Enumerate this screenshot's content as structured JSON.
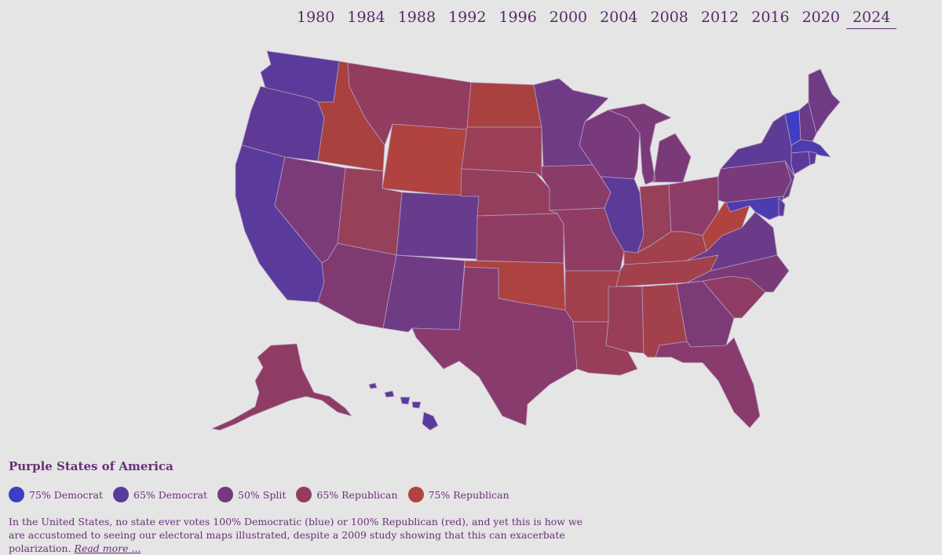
{
  "years": [
    "1980",
    "1984",
    "1988",
    "1992",
    "1996",
    "2000",
    "2004",
    "2008",
    "2012",
    "2016",
    "2020",
    "2024"
  ],
  "active_year": "2024",
  "title": "Purple States of America",
  "legend": [
    {
      "label": "75% Democrat",
      "color": "#3e3dc4"
    },
    {
      "label": "65% Democrat",
      "color": "#5a3b9c"
    },
    {
      "label": "50% Split",
      "color": "#753a7d"
    },
    {
      "label": "65% Republican",
      "color": "#923c5f"
    },
    {
      "label": "75% Republican",
      "color": "#b0433f"
    }
  ],
  "description": "In the United States, no state ever votes 100% Democratic (blue) or 100% Republican (red), and yet this is how we are accustomed to seeing our electoral maps illustrated, despite a 2009 study showing that this can exacerbate polarization.",
  "read_more": "Read more ...",
  "colors": {
    "background": "#e5e5e5",
    "text": "#6b2f78",
    "border": "#b79ac0"
  },
  "states": [
    {
      "id": "WA",
      "name": "Washington",
      "color": "#5a3b9c"
    },
    {
      "id": "OR",
      "name": "Oregon",
      "color": "#5e3a96"
    },
    {
      "id": "CA",
      "name": "California",
      "color": "#5a3b9c"
    },
    {
      "id": "ID",
      "name": "Idaho",
      "color": "#a8413f"
    },
    {
      "id": "NV",
      "name": "Nevada",
      "color": "#7b3a78"
    },
    {
      "id": "MT",
      "name": "Montana",
      "color": "#923c5f"
    },
    {
      "id": "WY",
      "name": "Wyoming",
      "color": "#b0433f"
    },
    {
      "id": "UT",
      "name": "Utah",
      "color": "#96405a"
    },
    {
      "id": "AZ",
      "name": "Arizona",
      "color": "#7f3a72"
    },
    {
      "id": "CO",
      "name": "Colorado",
      "color": "#683c8c"
    },
    {
      "id": "NM",
      "name": "New Mexico",
      "color": "#6e3b84"
    },
    {
      "id": "ND",
      "name": "North Dakota",
      "color": "#a8413f"
    },
    {
      "id": "SD",
      "name": "South Dakota",
      "color": "#9a3f55"
    },
    {
      "id": "NE",
      "name": "Nebraska",
      "color": "#953d5c"
    },
    {
      "id": "KS",
      "name": "Kansas",
      "color": "#913c62"
    },
    {
      "id": "OK",
      "name": "Oklahoma",
      "color": "#ad4340"
    },
    {
      "id": "TX",
      "name": "Texas",
      "color": "#883b6c"
    },
    {
      "id": "MN",
      "name": "Minnesota",
      "color": "#6e3b84"
    },
    {
      "id": "IA",
      "name": "Iowa",
      "color": "#8a3c68"
    },
    {
      "id": "MO",
      "name": "Missouri",
      "color": "#903c63"
    },
    {
      "id": "AR",
      "name": "Arkansas",
      "color": "#a2404c"
    },
    {
      "id": "LA",
      "name": "Louisiana",
      "color": "#983e58"
    },
    {
      "id": "WI",
      "name": "Wisconsin",
      "color": "#783a7a"
    },
    {
      "id": "IL",
      "name": "Illinois",
      "color": "#5c3b98"
    },
    {
      "id": "MI",
      "name": "Michigan",
      "color": "#7a3a79"
    },
    {
      "id": "IN",
      "name": "Indiana",
      "color": "#96405a"
    },
    {
      "id": "OH",
      "name": "Ohio",
      "color": "#8c3c66"
    },
    {
      "id": "KY",
      "name": "Kentucky",
      "color": "#a2404c"
    },
    {
      "id": "TN",
      "name": "Tennessee",
      "color": "#a2404c"
    },
    {
      "id": "MS",
      "name": "Mississippi",
      "color": "#983e58"
    },
    {
      "id": "AL",
      "name": "Alabama",
      "color": "#a2404c"
    },
    {
      "id": "GA",
      "name": "Georgia",
      "color": "#7c3a76"
    },
    {
      "id": "FL",
      "name": "Florida",
      "color": "#883b6c"
    },
    {
      "id": "SC",
      "name": "South Carolina",
      "color": "#8e3c64"
    },
    {
      "id": "NC",
      "name": "North Carolina",
      "color": "#7a3a78"
    },
    {
      "id": "VA",
      "name": "Virginia",
      "color": "#6a3b88"
    },
    {
      "id": "WV",
      "name": "West Virginia",
      "color": "#b0433f"
    },
    {
      "id": "PA",
      "name": "Pennsylvania",
      "color": "#783a7a"
    },
    {
      "id": "NY",
      "name": "New York",
      "color": "#5e3b96"
    },
    {
      "id": "NJ",
      "name": "New Jersey",
      "color": "#683c8c"
    },
    {
      "id": "MD",
      "name": "Maryland",
      "color": "#4c3cb0"
    },
    {
      "id": "DE",
      "name": "Delaware",
      "color": "#5a3b9c"
    },
    {
      "id": "VT",
      "name": "Vermont",
      "color": "#3e3dc4"
    },
    {
      "id": "NH",
      "name": "New Hampshire",
      "color": "#6a3b88"
    },
    {
      "id": "ME",
      "name": "Maine",
      "color": "#6e3b84"
    },
    {
      "id": "MA",
      "name": "Massachusetts",
      "color": "#4c3cb0"
    },
    {
      "id": "CT",
      "name": "Connecticut",
      "color": "#5a3b9c"
    },
    {
      "id": "RI",
      "name": "Rhode Island",
      "color": "#5a3b9c"
    },
    {
      "id": "AK",
      "name": "Alaska",
      "color": "#8e3c64"
    },
    {
      "id": "HI",
      "name": "Hawaii",
      "color": "#5a3b9c"
    }
  ]
}
